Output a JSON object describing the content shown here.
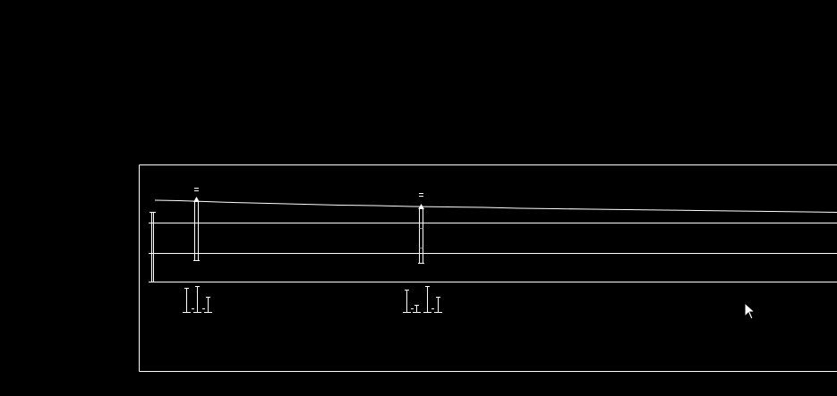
{
  "canvas": {
    "background_color": "#000000",
    "line_color": "#ffffff",
    "accent_color": "#c060c0"
  },
  "drawing": {
    "elements": [
      "sheet-frame",
      "ground-profile-line",
      "profile-band-lines",
      "borehole-column-1",
      "borehole-column-2",
      "symbol-cluster-1",
      "symbol-cluster-2"
    ]
  },
  "cursor": {
    "icon": "arrow-cursor-icon"
  }
}
